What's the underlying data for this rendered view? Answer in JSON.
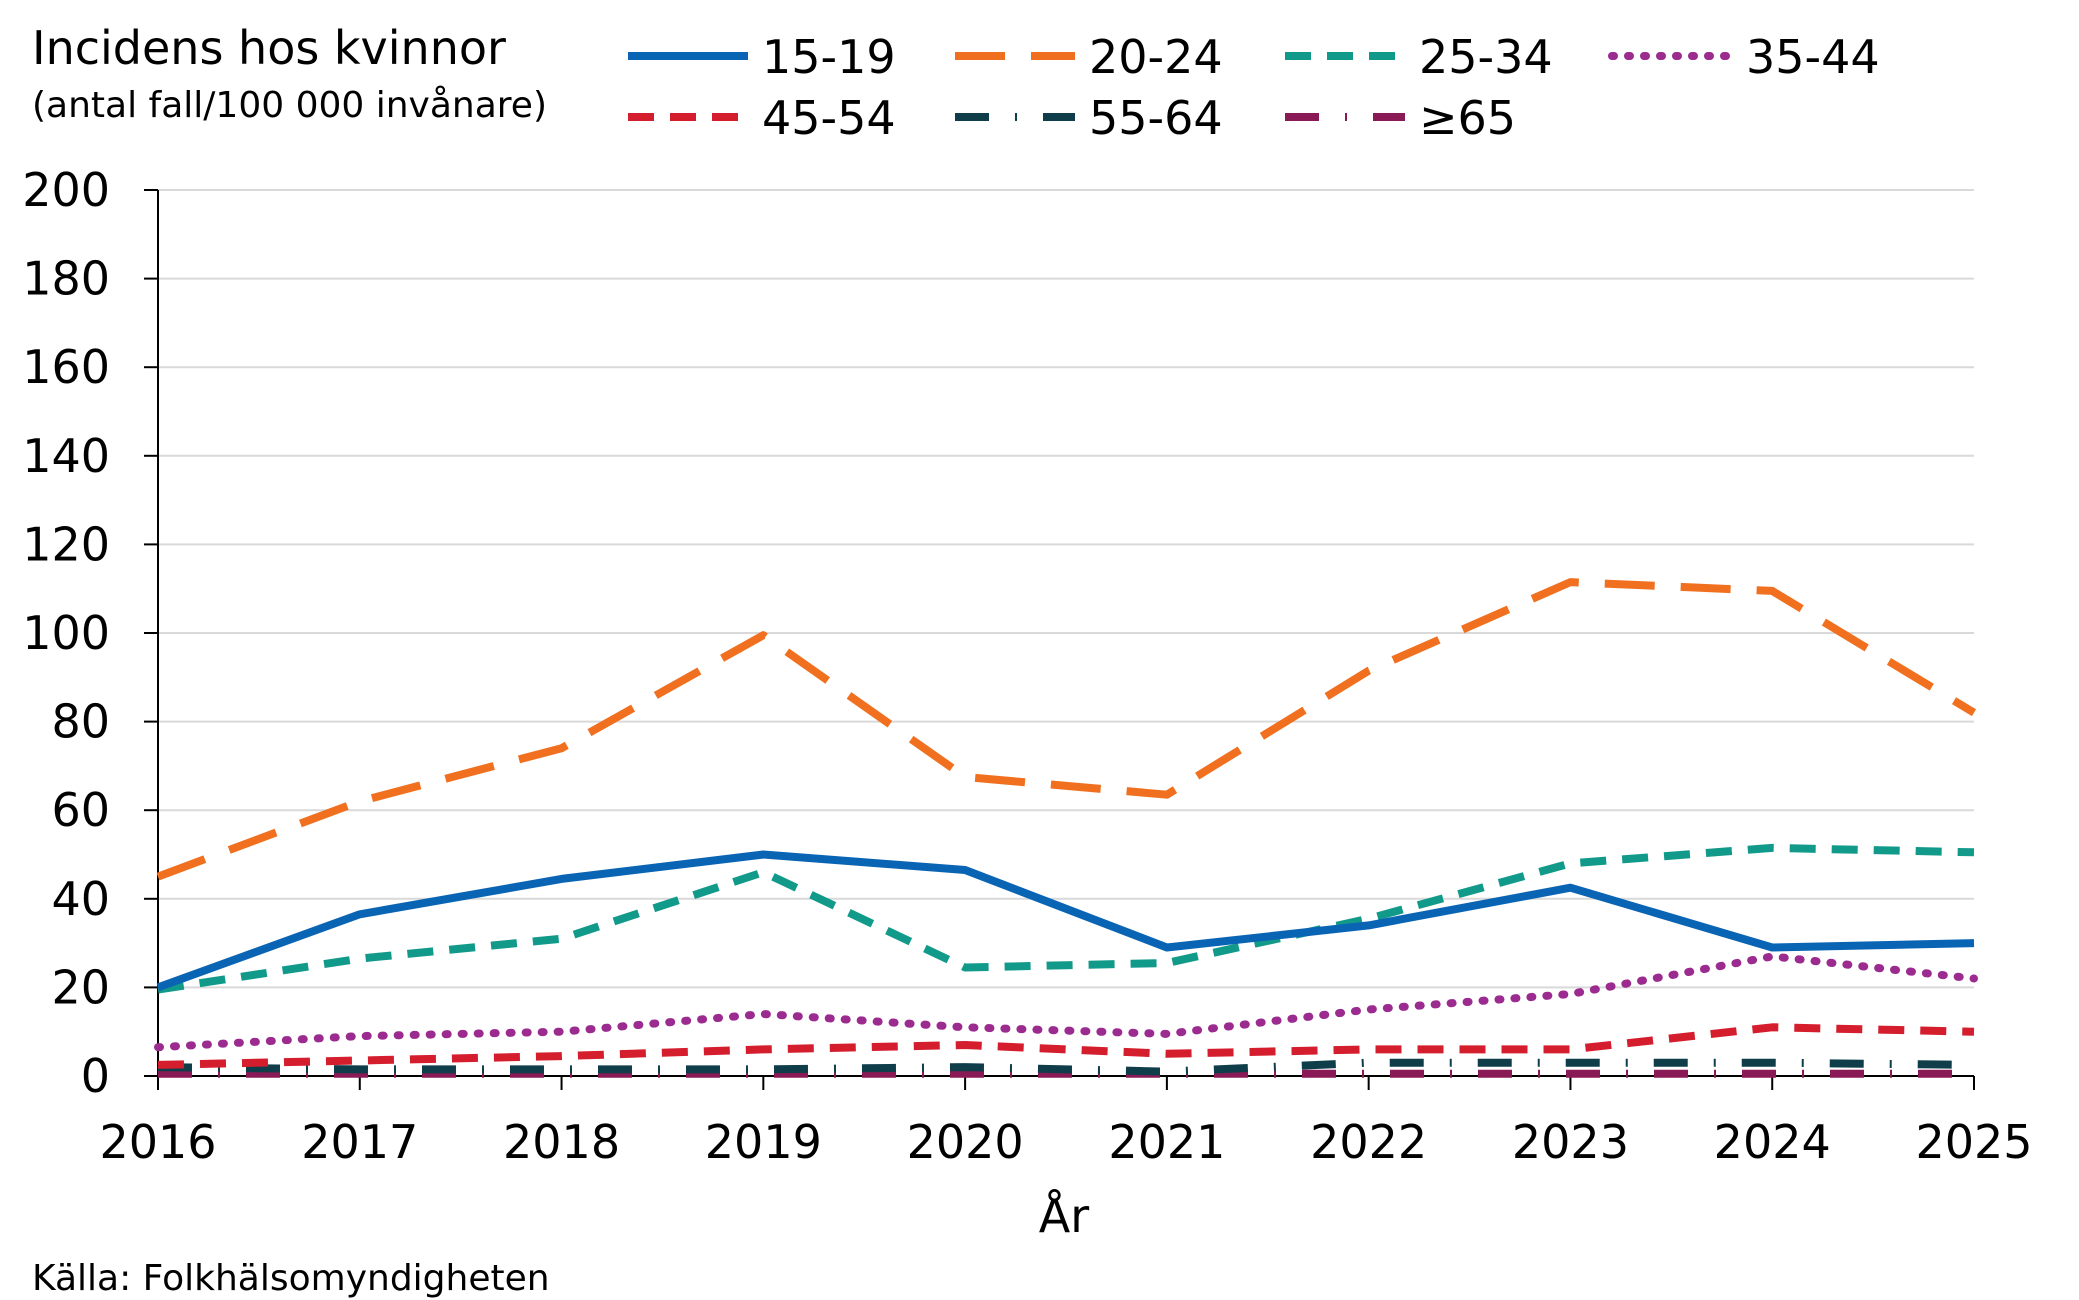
{
  "chart_data": {
    "type": "line",
    "title": "Incidens hos kvinnor",
    "subtitle": "(antal fall/100 000 invånare)",
    "xlabel": "År",
    "ylabel": "",
    "source": "Källa: Folkhälsomyndigheten",
    "x": [
      "2016",
      "2017",
      "2018",
      "2019",
      "2020",
      "2021",
      "2022",
      "2023",
      "2024",
      "2025"
    ],
    "ylim": [
      0,
      200
    ],
    "yticks": [
      "0",
      "20",
      "40",
      "60",
      "80",
      "100",
      "120",
      "140",
      "160",
      "180",
      "200"
    ],
    "grid": true,
    "legend_position": "top",
    "series": [
      {
        "name": "15-19",
        "color": "#0a64b4",
        "style": "solid",
        "values": [
          20,
          36.5,
          44.5,
          50,
          46.5,
          29,
          34,
          42.5,
          29,
          30
        ]
      },
      {
        "name": "20-24",
        "color": "#f07020",
        "style": "longdash",
        "values": [
          45,
          62,
          74,
          99.5,
          67.5,
          63.5,
          91.5,
          111.5,
          109.5,
          82
        ]
      },
      {
        "name": "25-34",
        "color": "#119a8a",
        "style": "dash",
        "values": [
          19.5,
          26.5,
          31,
          46,
          24.5,
          25.5,
          35.5,
          48,
          51.5,
          50.5
        ]
      },
      {
        "name": "35-44",
        "color": "#9b2b8f",
        "style": "dot",
        "values": [
          6.5,
          9,
          10,
          14,
          11,
          9.5,
          15,
          18.5,
          27,
          22
        ]
      },
      {
        "name": "45-54",
        "color": "#d51e2d",
        "style": "dash",
        "values": [
          2.5,
          3.5,
          4.5,
          6,
          7,
          5,
          6,
          6,
          11,
          10
        ]
      },
      {
        "name": "55-64",
        "color": "#0f3e4a",
        "style": "dashdot",
        "values": [
          2,
          1.5,
          1.5,
          1.5,
          2,
          1,
          3,
          3,
          3,
          2.5
        ]
      },
      {
        "name": "≥65",
        "color": "#8a1a55",
        "style": "dashdot",
        "values": [
          0.5,
          0.5,
          0.5,
          0.5,
          0.5,
          0.5,
          0.5,
          0.5,
          0.5,
          0.5
        ]
      }
    ]
  }
}
